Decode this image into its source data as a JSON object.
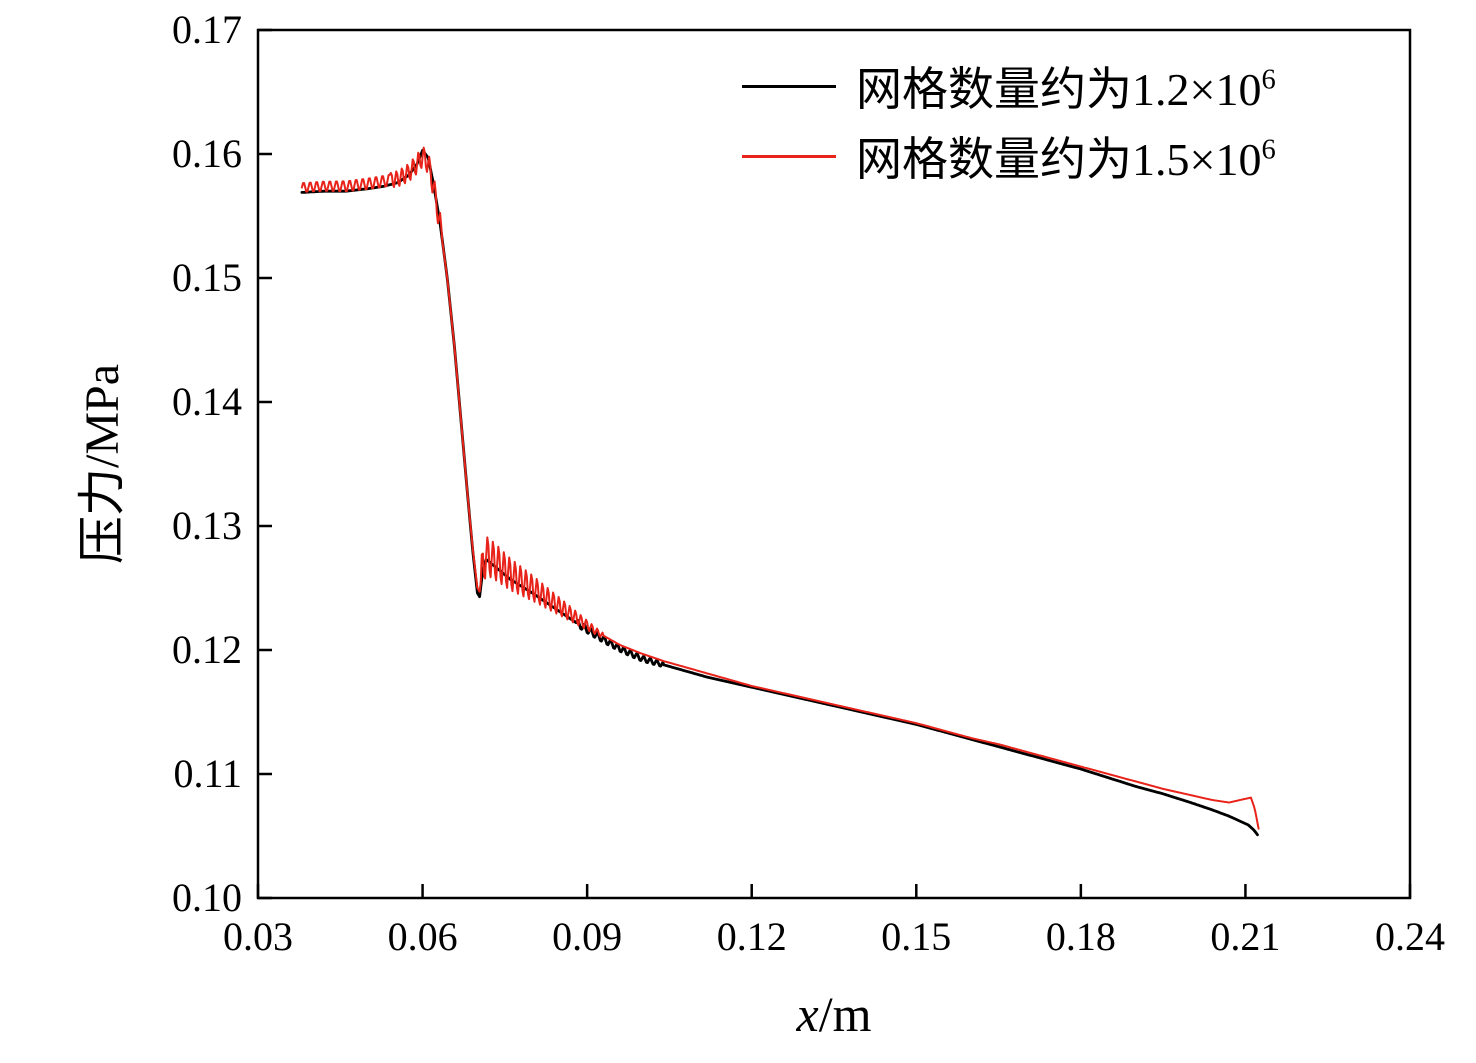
{
  "chart_data": {
    "type": "line",
    "title": "",
    "xlabel": {
      "var": "x",
      "unit": "/m"
    },
    "ylabel": "压力/MPa",
    "xlim": [
      0.03,
      0.24
    ],
    "ylim": [
      0.1,
      0.17
    ],
    "grid": false,
    "legend_position": "top-right-inside",
    "xticks": [
      "0.03",
      "0.06",
      "0.09",
      "0.12",
      "0.15",
      "0.18",
      "0.21",
      "0.24"
    ],
    "yticks": [
      "0.10",
      "0.11",
      "0.12",
      "0.13",
      "0.14",
      "0.15",
      "0.16",
      "0.17"
    ],
    "series": [
      {
        "name": "网格数量约为1.2×10⁶",
        "legend_label": "网格数量约为1.2×10",
        "legend_sup": "6",
        "color": "#000000",
        "stroke_width": 2.8,
        "points": [
          [
            0.038,
            0.1569
          ],
          [
            0.042,
            0.157
          ],
          [
            0.046,
            0.157
          ],
          [
            0.05,
            0.1572
          ],
          [
            0.053,
            0.1574
          ],
          [
            0.0555,
            0.1577
          ],
          [
            0.0575,
            0.1583
          ],
          [
            0.059,
            0.1592
          ],
          [
            0.06,
            0.1603
          ],
          [
            0.061,
            0.1597
          ],
          [
            0.062,
            0.1576
          ],
          [
            0.0632,
            0.1544
          ],
          [
            0.0645,
            0.15
          ],
          [
            0.0658,
            0.1445
          ],
          [
            0.067,
            0.1385
          ],
          [
            0.0682,
            0.1325
          ],
          [
            0.0692,
            0.1278
          ],
          [
            0.07,
            0.1246
          ],
          [
            0.0704,
            0.1243
          ],
          [
            0.071,
            0.1265
          ],
          [
            0.0716,
            0.1273
          ],
          [
            0.073,
            0.1268
          ],
          [
            0.076,
            0.1257
          ],
          [
            0.08,
            0.1246
          ],
          [
            0.084,
            0.1234
          ],
          [
            0.088,
            0.1222
          ],
          [
            0.092,
            0.1211
          ],
          [
            0.096,
            0.1201
          ],
          [
            0.1,
            0.1193
          ],
          [
            0.104,
            0.1188
          ],
          [
            0.108,
            0.1183
          ],
          [
            0.112,
            0.1178
          ],
          [
            0.116,
            0.1174
          ],
          [
            0.12,
            0.117
          ],
          [
            0.125,
            0.1165
          ],
          [
            0.13,
            0.116
          ],
          [
            0.135,
            0.1155
          ],
          [
            0.14,
            0.115
          ],
          [
            0.145,
            0.1145
          ],
          [
            0.15,
            0.114
          ],
          [
            0.155,
            0.1134
          ],
          [
            0.16,
            0.1128
          ],
          [
            0.165,
            0.1122
          ],
          [
            0.17,
            0.1116
          ],
          [
            0.175,
            0.111
          ],
          [
            0.18,
            0.1104
          ],
          [
            0.185,
            0.1097
          ],
          [
            0.19,
            0.109
          ],
          [
            0.195,
            0.1084
          ],
          [
            0.2,
            0.1077
          ],
          [
            0.204,
            0.1071
          ],
          [
            0.207,
            0.1066
          ],
          [
            0.209,
            0.1062
          ],
          [
            0.2105,
            0.1059
          ],
          [
            0.2115,
            0.1055
          ],
          [
            0.2122,
            0.1051
          ]
        ],
        "oscillations": [
          {
            "from": 0.088,
            "to": 0.104,
            "amp_start": 0.0003,
            "amp_end": 0.0002,
            "period": 0.0012
          }
        ]
      },
      {
        "name": "网格数量约为1.5×10⁶",
        "legend_label": "网格数量约为1.5×10",
        "legend_sup": "6",
        "color": "#e8231a",
        "stroke_width": 2.0,
        "points": [
          [
            0.038,
            0.1573
          ],
          [
            0.042,
            0.1574
          ],
          [
            0.046,
            0.1574
          ],
          [
            0.05,
            0.1576
          ],
          [
            0.053,
            0.1578
          ],
          [
            0.0555,
            0.158
          ],
          [
            0.0575,
            0.1585
          ],
          [
            0.059,
            0.1592
          ],
          [
            0.06,
            0.1598
          ],
          [
            0.061,
            0.1593
          ],
          [
            0.062,
            0.1574
          ],
          [
            0.0632,
            0.1543
          ],
          [
            0.0645,
            0.15
          ],
          [
            0.0658,
            0.1445
          ],
          [
            0.067,
            0.1385
          ],
          [
            0.0682,
            0.1325
          ],
          [
            0.0692,
            0.128
          ],
          [
            0.07,
            0.125
          ],
          [
            0.0704,
            0.1247
          ],
          [
            0.071,
            0.1268
          ],
          [
            0.0716,
            0.1276
          ],
          [
            0.073,
            0.1272
          ],
          [
            0.076,
            0.1261
          ],
          [
            0.08,
            0.125
          ],
          [
            0.084,
            0.1238
          ],
          [
            0.088,
            0.1226
          ],
          [
            0.092,
            0.1214
          ],
          [
            0.096,
            0.1204
          ],
          [
            0.1,
            0.1197
          ],
          [
            0.104,
            0.1191
          ],
          [
            0.108,
            0.1186
          ],
          [
            0.112,
            0.1181
          ],
          [
            0.116,
            0.1176
          ],
          [
            0.12,
            0.1171
          ],
          [
            0.125,
            0.1166
          ],
          [
            0.13,
            0.1161
          ],
          [
            0.135,
            0.1156
          ],
          [
            0.14,
            0.1151
          ],
          [
            0.145,
            0.1146
          ],
          [
            0.15,
            0.1141
          ],
          [
            0.155,
            0.1135
          ],
          [
            0.16,
            0.1129
          ],
          [
            0.165,
            0.1124
          ],
          [
            0.17,
            0.1118
          ],
          [
            0.175,
            0.1112
          ],
          [
            0.18,
            0.1106
          ],
          [
            0.185,
            0.11
          ],
          [
            0.19,
            0.1094
          ],
          [
            0.195,
            0.1088
          ],
          [
            0.2,
            0.1083
          ],
          [
            0.204,
            0.1079
          ],
          [
            0.207,
            0.1077
          ],
          [
            0.209,
            0.1079
          ],
          [
            0.211,
            0.1081
          ],
          [
            0.2117,
            0.1072
          ],
          [
            0.2124,
            0.1056
          ]
        ],
        "oscillations": [
          {
            "from": 0.038,
            "to": 0.054,
            "amp_start": 0.0004,
            "amp_end": 0.0005,
            "period": 0.0012
          },
          {
            "from": 0.054,
            "to": 0.0635,
            "amp_start": 0.0006,
            "amp_end": 0.001,
            "period": 0.001
          },
          {
            "from": 0.0706,
            "to": 0.093,
            "amp_start": 0.0017,
            "amp_end": 0.0002,
            "period": 0.001
          }
        ]
      }
    ]
  }
}
